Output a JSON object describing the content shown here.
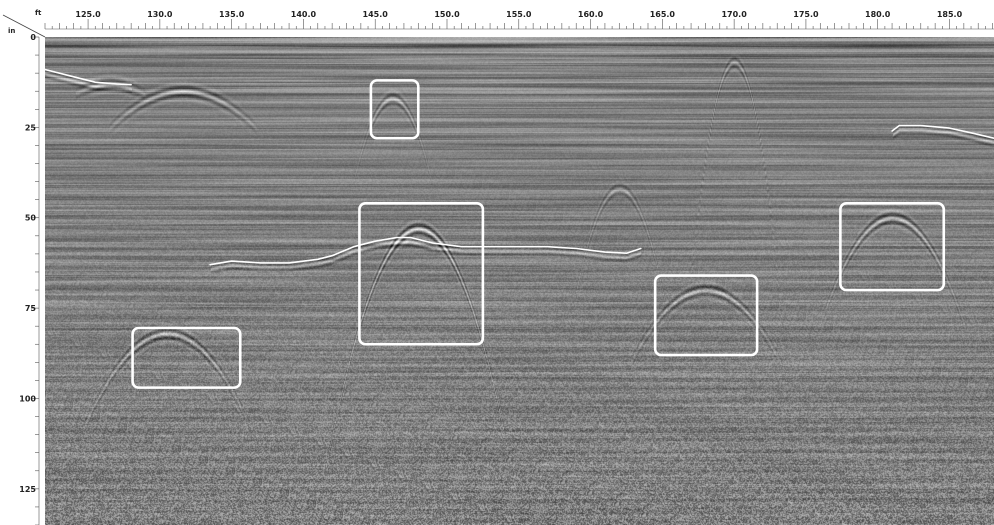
{
  "chart_data": {
    "type": "heatmap",
    "title": "",
    "x_unit": "ft",
    "y_unit": "in",
    "xlim": [
      122.0,
      188.1
    ],
    "ylim": [
      0,
      135
    ],
    "y_inverted": true,
    "x_ticks": [
      "125.0",
      "130.0",
      "135.0",
      "140.0",
      "145.0",
      "150.0",
      "155.0",
      "160.0",
      "165.0",
      "170.0",
      "175.0",
      "180.0",
      "185.0"
    ],
    "y_ticks": [
      "0",
      "25",
      "50",
      "75",
      "100",
      "125"
    ],
    "colormap": "grayscale",
    "annotation_color": "#ffffff",
    "reflectors": [
      {
        "name": "upper-left",
        "points": [
          [
            122.0,
            9
          ],
          [
            124.0,
            11
          ],
          [
            125.5,
            12.5
          ],
          [
            127.0,
            13
          ],
          [
            128.0,
            13.2
          ]
        ]
      },
      {
        "name": "central",
        "points": [
          [
            133.5,
            63
          ],
          [
            135.0,
            62
          ],
          [
            137.0,
            62.5
          ],
          [
            139.0,
            62.5
          ],
          [
            141.0,
            61.5
          ],
          [
            142.0,
            60.5
          ],
          [
            143.5,
            58
          ],
          [
            145.0,
            56.5
          ],
          [
            146.5,
            55.5
          ],
          [
            147.5,
            55.5
          ],
          [
            149.0,
            57
          ],
          [
            151.0,
            58
          ],
          [
            154.0,
            58
          ],
          [
            157.0,
            58
          ],
          [
            159.0,
            58.5
          ],
          [
            161.0,
            59.5
          ],
          [
            162.5,
            59.8
          ],
          [
            163.5,
            58.5
          ]
        ]
      },
      {
        "name": "upper-right",
        "points": [
          [
            181.0,
            26
          ],
          [
            181.5,
            24.5
          ],
          [
            183.0,
            24.5
          ],
          [
            185.0,
            25.2
          ],
          [
            186.5,
            26.5
          ],
          [
            188.1,
            28
          ]
        ]
      }
    ],
    "boxes": [
      {
        "x": [
          144.7,
          148.0
        ],
        "y": [
          12,
          28
        ]
      },
      {
        "x": [
          143.9,
          152.5
        ],
        "y": [
          46,
          85
        ]
      },
      {
        "x": [
          128.1,
          135.6
        ],
        "y": [
          80.5,
          97
        ]
      },
      {
        "x": [
          164.5,
          171.6
        ],
        "y": [
          66,
          88
        ]
      },
      {
        "x": [
          177.4,
          184.6
        ],
        "y": [
          46,
          70
        ]
      }
    ],
    "hyperbolas": [
      {
        "x": 126.5,
        "y": 13,
        "halfwidth": 1.5,
        "drop": 1,
        "strength": 0.85
      },
      {
        "x": 131.6,
        "y": 15,
        "halfwidth": 3.2,
        "drop": 4,
        "strength": 0.75
      },
      {
        "x": 146.2,
        "y": 17,
        "halfwidth": 1.7,
        "drop": 9,
        "strength": 0.55
      },
      {
        "x": 148.0,
        "y": 53,
        "halfwidth": 4.2,
        "drop": 28,
        "strength": 0.9
      },
      {
        "x": 130.5,
        "y": 82,
        "halfwidth": 3.6,
        "drop": 10,
        "strength": 0.75
      },
      {
        "x": 168.0,
        "y": 70,
        "halfwidth": 3.3,
        "drop": 8,
        "strength": 0.7
      },
      {
        "x": 181.0,
        "y": 50,
        "halfwidth": 3.2,
        "drop": 12,
        "strength": 0.75
      },
      {
        "x": 170.0,
        "y": 7,
        "halfwidth": 2.4,
        "drop": 38,
        "strength": 0.45
      },
      {
        "x": 162.0,
        "y": 42,
        "halfwidth": 2.4,
        "drop": 18,
        "strength": 0.4
      }
    ]
  }
}
